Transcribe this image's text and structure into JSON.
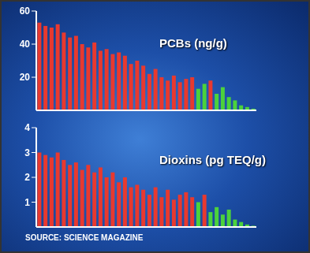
{
  "chart_data": [
    {
      "type": "bar",
      "title": "PCBs (ng/g)",
      "categories": [
        null,
        null,
        null,
        null,
        null,
        null,
        null,
        null,
        null,
        null,
        null,
        null,
        null,
        null,
        null,
        null,
        null,
        null,
        null,
        null,
        null,
        null,
        null,
        null,
        null,
        null,
        null,
        null,
        null,
        null,
        null,
        null,
        null,
        null,
        null,
        null
      ],
      "values": [
        53,
        51,
        50,
        52,
        47,
        44,
        45,
        40,
        38,
        41,
        36,
        37,
        34,
        35,
        33,
        28,
        30,
        27,
        22,
        25,
        20,
        18,
        21,
        17,
        19,
        20,
        13,
        16,
        18,
        10,
        14,
        8,
        6,
        3,
        2,
        1
      ],
      "colors": [
        "#e8392f",
        "#e8392f",
        "#e8392f",
        "#e8392f",
        "#e8392f",
        "#e8392f",
        "#e8392f",
        "#e8392f",
        "#e8392f",
        "#e8392f",
        "#e8392f",
        "#e8392f",
        "#e8392f",
        "#e8392f",
        "#e8392f",
        "#e8392f",
        "#e8392f",
        "#e8392f",
        "#e8392f",
        "#e8392f",
        "#e8392f",
        "#e8392f",
        "#e8392f",
        "#e8392f",
        "#e8392f",
        "#e8392f",
        "#4cd23c",
        "#4cd23c",
        "#e8392f",
        "#4cd23c",
        "#4cd23c",
        "#4cd23c",
        "#4cd23c",
        "#4cd23c",
        "#4cd23c",
        "#4cd23c"
      ],
      "ylim": [
        0,
        60
      ],
      "yticks": [
        20,
        40,
        60
      ],
      "grid": false,
      "tick_labels": "y"
    },
    {
      "type": "bar",
      "title": "Dioxins (pg TEQ/g)",
      "categories": [
        null,
        null,
        null,
        null,
        null,
        null,
        null,
        null,
        null,
        null,
        null,
        null,
        null,
        null,
        null,
        null,
        null,
        null,
        null,
        null,
        null,
        null,
        null,
        null,
        null,
        null,
        null,
        null,
        null,
        null,
        null,
        null,
        null,
        null,
        null,
        null
      ],
      "values": [
        3.0,
        2.9,
        2.8,
        3.0,
        2.7,
        2.5,
        2.6,
        2.3,
        2.5,
        2.2,
        2.4,
        2.0,
        2.2,
        1.8,
        2.0,
        1.6,
        1.7,
        1.5,
        1.3,
        1.6,
        1.2,
        1.5,
        1.1,
        1.3,
        1.4,
        1.2,
        1.0,
        1.3,
        0.6,
        0.8,
        0.5,
        0.7,
        0.3,
        0.2,
        0.1,
        0.05
      ],
      "colors": [
        "#e8392f",
        "#e8392f",
        "#e8392f",
        "#e8392f",
        "#e8392f",
        "#e8392f",
        "#e8392f",
        "#e8392f",
        "#e8392f",
        "#e8392f",
        "#e8392f",
        "#e8392f",
        "#e8392f",
        "#e8392f",
        "#e8392f",
        "#e8392f",
        "#e8392f",
        "#e8392f",
        "#e8392f",
        "#e8392f",
        "#e8392f",
        "#e8392f",
        "#e8392f",
        "#e8392f",
        "#e8392f",
        "#e8392f",
        "#4cd23c",
        "#e8392f",
        "#4cd23c",
        "#4cd23c",
        "#4cd23c",
        "#4cd23c",
        "#4cd23c",
        "#4cd23c",
        "#4cd23c",
        "#4cd23c"
      ],
      "ylim": [
        0,
        4
      ],
      "yticks": [
        1,
        2,
        3,
        4
      ],
      "grid": false,
      "tick_labels": "y",
      "annotations": [
        "SOURCE: SCIENCE MAGAZINE"
      ]
    }
  ]
}
